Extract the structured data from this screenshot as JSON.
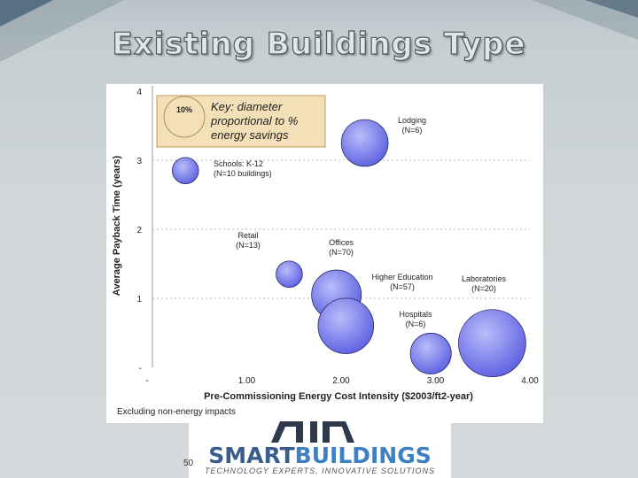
{
  "slide": {
    "title": "Existing Buildings Type",
    "footnote": "Excluding non-energy impacts",
    "slide_number": "50"
  },
  "logo": {
    "word_part1": "SMART",
    "word_part2": "BUILDINGS",
    "tagline": "TECHNOLOGY EXPERTS, INNOVATIVE SOLUTIONS"
  },
  "colors": {
    "bubble_fill_center": "#b9bdfa",
    "bubble_fill_edge": "#5b5fe0",
    "key_box_fill": "#f3dfb8",
    "key_box_stroke": "#c29a5b"
  },
  "chart_data": {
    "type": "scatter",
    "xlabel": "Pre-Commissioning Energy Cost Intensity ($2003/ft2-year)",
    "ylabel": "Average Payback Time (years)",
    "xlim": [
      0,
      4
    ],
    "ylim": [
      0,
      4
    ],
    "x_ticks": [
      "-",
      "1.00",
      "2.00",
      "3.00",
      "4.00"
    ],
    "y_ticks": [
      "-",
      "1",
      "2",
      "3",
      "4"
    ],
    "grid": "horizontal dashed at 1,2,3",
    "key": {
      "sample_label": "10%",
      "text": [
        "Key: diameter",
        "proportional to %",
        "energy savings"
      ]
    },
    "series": [
      {
        "label": "Lodging",
        "n": "(N=6)",
        "x": 2.25,
        "y": 3.25,
        "savings_pct": 16
      },
      {
        "label": "Schools: K-12",
        "n": "(N=10 buildings)",
        "x": 0.35,
        "y": 2.85,
        "savings_pct": 9
      },
      {
        "label": "Retail",
        "n": "(N=13)",
        "x": 1.45,
        "y": 1.35,
        "savings_pct": 9
      },
      {
        "label": "Offices",
        "n": "(N=70)",
        "x": 1.95,
        "y": 1.05,
        "savings_pct": 17
      },
      {
        "label": "Higher Education",
        "n": "(N=57)",
        "x": 2.05,
        "y": 0.6,
        "savings_pct": 19
      },
      {
        "label": "Hospitals",
        "n": "(N=6)",
        "x": 2.95,
        "y": 0.2,
        "savings_pct": 14
      },
      {
        "label": "Laboratories",
        "n": "(N=20)",
        "x": 3.6,
        "y": 0.35,
        "savings_pct": 23
      }
    ]
  }
}
